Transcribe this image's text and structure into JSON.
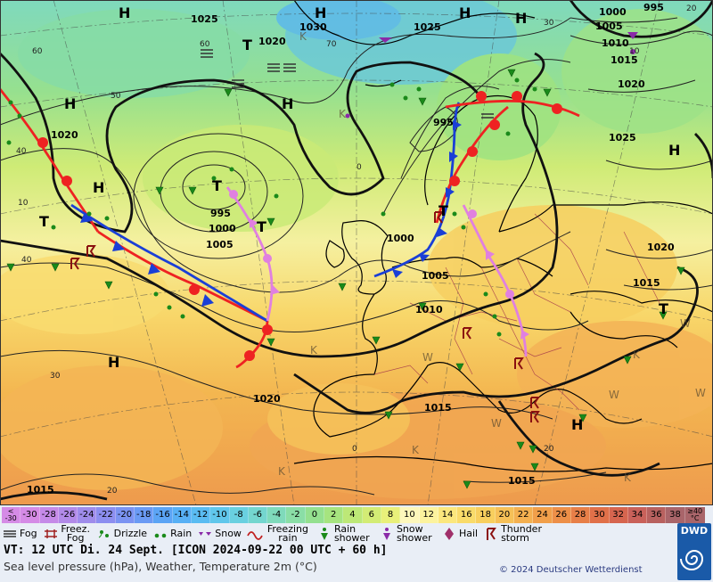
{
  "map": {
    "pressure_centers": [
      {
        "type": "H",
        "label": "H"
      },
      {
        "type": "H",
        "label": "H"
      },
      {
        "type": "H",
        "label": "H"
      },
      {
        "type": "H",
        "label": "H"
      },
      {
        "type": "H",
        "label": "H"
      },
      {
        "type": "H",
        "label": "H"
      },
      {
        "type": "H",
        "label": "H"
      },
      {
        "type": "H",
        "label": "H"
      },
      {
        "type": "H",
        "label": "H"
      },
      {
        "type": "H",
        "label": "H"
      },
      {
        "type": "T",
        "label": "T"
      },
      {
        "type": "T",
        "label": "T"
      },
      {
        "type": "T",
        "label": "T"
      },
      {
        "type": "T",
        "label": "T"
      },
      {
        "type": "T",
        "label": "T"
      },
      {
        "type": "T",
        "label": "T"
      }
    ],
    "isobar_labels": [
      "1025",
      "1020",
      "1030",
      "1025",
      "1000",
      "995",
      "1005",
      "1010",
      "1015",
      "1020",
      "995",
      "1000",
      "1005",
      "1025",
      "1020",
      "1015",
      "1000",
      "995",
      "1005",
      "1010",
      "1015",
      "1020",
      "1015",
      "1015"
    ],
    "temperature_labels": [
      "60",
      "50",
      "40",
      "30",
      "20",
      "10",
      "0",
      "70",
      "40",
      "60",
      "30",
      "20",
      "0",
      "10",
      "20"
    ],
    "thermal_low_labels": [
      "K",
      "K",
      "K",
      "K",
      "W",
      "W",
      "W",
      "W",
      "W",
      "K",
      "K",
      "K"
    ]
  },
  "legend": {
    "scale_first": [
      "<",
      "-30"
    ],
    "scale_values": [
      "-30",
      "-28",
      "-26",
      "-24",
      "-22",
      "-20",
      "-18",
      "-16",
      "-14",
      "-12",
      "-10",
      "-8",
      "-6",
      "-4",
      "-2",
      "0",
      "2",
      "4",
      "6",
      "8",
      "10",
      "12",
      "14",
      "16",
      "18",
      "20",
      "22",
      "24",
      "26",
      "28",
      "30",
      "32",
      "34",
      "36",
      "38"
    ],
    "scale_colors": [
      "#d58be6",
      "#c58ae8",
      "#b28ae8",
      "#9f8ceb",
      "#8c8ef0",
      "#7b93f2",
      "#6a9af4",
      "#5ba4f5",
      "#57b0f5",
      "#5abcf2",
      "#60c7eb",
      "#69d0e0",
      "#74d6cf",
      "#7fdabb",
      "#8adea6",
      "#94e08f",
      "#a6e47f",
      "#bde877",
      "#d3ec75",
      "#e9f07a",
      "#fdf7bb",
      "#fcf39e",
      "#fbe77d",
      "#f9db6a",
      "#f8cf5e",
      "#f6c057",
      "#f4b050",
      "#f19f4a",
      "#ed8f48",
      "#e77f48",
      "#e07049",
      "#d6654f",
      "#c9615a",
      "#b8615f",
      "#a9656a"
    ],
    "scale_last": [
      "≥40",
      "°C"
    ],
    "symbols": [
      {
        "label": "Fog",
        "icon": "fog-icon"
      },
      {
        "label": "Freez. Fog",
        "icon": "freezing-fog-icon"
      },
      {
        "label": "Drizzle",
        "icon": "drizzle-icon"
      },
      {
        "label": "Rain",
        "icon": "rain-icon"
      },
      {
        "label": "Snow",
        "icon": "snow-icon"
      },
      {
        "label": "Freezing rain",
        "icon": "freezing-rain-icon"
      },
      {
        "label": "Rain shower",
        "icon": "rain-shower-icon"
      },
      {
        "label": "Snow shower",
        "icon": "snow-shower-icon"
      },
      {
        "label": "Hail",
        "icon": "hail-icon"
      },
      {
        "label": "Thunder storm",
        "icon": "thunderstorm-icon"
      }
    ],
    "valid_time": "VT: 12 UTC Di.  24 Sept. [ICON 2024-09-22  00 UTC + 60 h]",
    "description": "Sea level pressure (hPa), Weather, Temperature 2m (°C)",
    "copyright": "© 2024 Deutscher Wetterdienst",
    "logo_text": "DWD"
  }
}
